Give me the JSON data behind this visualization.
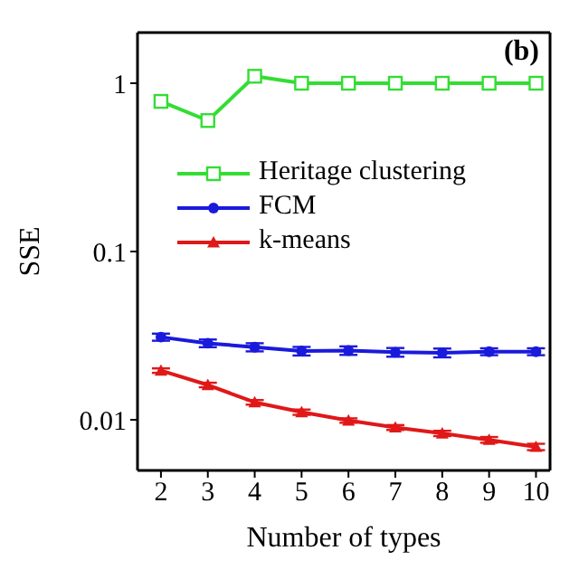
{
  "chart_data": {
    "type": "line",
    "xlabel": "Number of types",
    "ylabel": "SSE",
    "annotations": [
      "(b)"
    ],
    "x": [
      2,
      3,
      4,
      5,
      6,
      7,
      8,
      9,
      10
    ],
    "series": [
      {
        "name": "Heritage clustering",
        "color": "#33dd33",
        "marker": "square",
        "values": [
          0.78,
          0.6,
          1.1,
          1.0,
          1.0,
          1.0,
          1.0,
          1.0,
          1.0
        ]
      },
      {
        "name": "FCM",
        "color": "#1a1adc",
        "marker": "circle",
        "values": [
          0.031,
          0.0285,
          0.027,
          0.0256,
          0.0258,
          0.0252,
          0.025,
          0.0254,
          0.0254
        ],
        "errors": [
          0.0015,
          0.0015,
          0.0015,
          0.0015,
          0.0015,
          0.0015,
          0.0015,
          0.0012,
          0.0012
        ]
      },
      {
        "name": "k-means",
        "color": "#e01818",
        "marker": "triangle",
        "values": [
          0.0196,
          0.0161,
          0.0127,
          0.0111,
          0.0099,
          0.009,
          0.0083,
          0.0076,
          0.0069
        ],
        "errors": [
          0.0006,
          0.0005,
          0.0004,
          0.0004,
          0.0003,
          0.0003,
          0.0003,
          0.0003,
          0.0003
        ]
      }
    ],
    "xlim": [
      1.5,
      10.3
    ],
    "xticks": [
      2,
      3,
      4,
      5,
      6,
      7,
      8,
      9,
      10
    ],
    "ylim": [
      0.005,
      2
    ],
    "yticks": [
      0.01,
      0.1,
      1
    ],
    "log": true,
    "legend": "top",
    "line_style": "solid",
    "grid": false
  }
}
